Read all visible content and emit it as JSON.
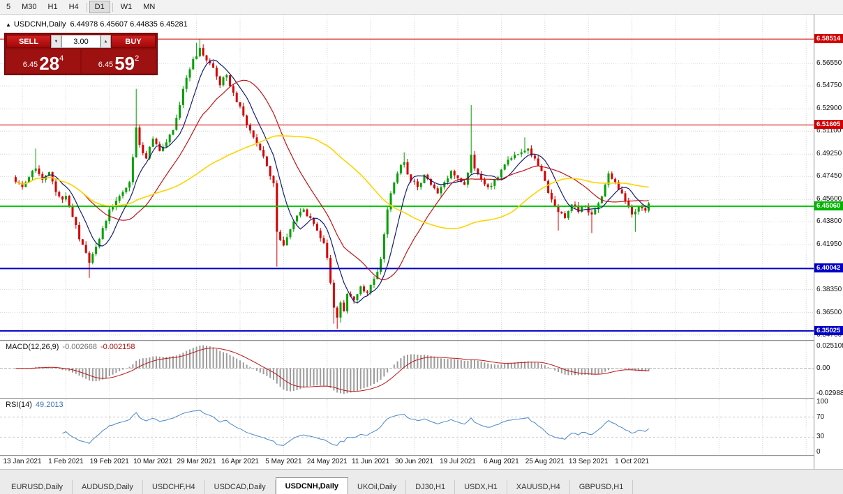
{
  "timeframe_bar": {
    "items": [
      "5",
      "M30",
      "H1",
      "H4",
      "D1",
      "W1",
      "MN"
    ],
    "active": "D1"
  },
  "header": {
    "symbol": "USDCNH,Daily",
    "ohlc": "6.44978 6.45607 6.44835 6.45281",
    "open": "6.44978",
    "high": "6.45607",
    "low": "6.44835",
    "close": "6.45281"
  },
  "icons": {
    "collapse_triangle": "▲",
    "lot_down_arrow": "▼",
    "lot_up_arrow": "▲"
  },
  "one_click": {
    "sell_label": "SELL",
    "buy_label": "BUY",
    "lot_size": "3.00",
    "sell_price_prefix": "6.45",
    "sell_price_big": "28",
    "sell_price_sup": "4",
    "buy_price_prefix": "6.45",
    "buy_price_big": "59",
    "buy_price_sup": "2"
  },
  "price_axis": {
    "grid_labels": [
      {
        "text": "6.56550",
        "price": 6.5655
      },
      {
        "text": "6.54750",
        "price": 6.5475
      },
      {
        "text": "6.52900",
        "price": 6.529
      },
      {
        "text": "6.51100",
        "price": 6.511
      },
      {
        "text": "6.49250",
        "price": 6.4925
      },
      {
        "text": "6.47450",
        "price": 6.4745
      },
      {
        "text": "6.45600",
        "price": 6.456
      },
      {
        "text": "6.43800",
        "price": 6.438
      },
      {
        "text": "6.41950",
        "price": 6.4195
      },
      {
        "text": "6.38350",
        "price": 6.3835
      },
      {
        "text": "6.36500",
        "price": 6.365
      },
      {
        "text": "6.34700",
        "price": 6.347
      }
    ],
    "tags": [
      {
        "text": "6.58514",
        "price": 6.58514,
        "color": "#d20000"
      },
      {
        "text": "6.51605",
        "price": 6.51605,
        "color": "#d20000"
      },
      {
        "text": "6.45060",
        "price": 6.4506,
        "color": "#00b400"
      },
      {
        "text": "6.40042",
        "price": 6.40042,
        "color": "#0000c8"
      },
      {
        "text": "6.35025",
        "price": 6.35025,
        "color": "#0000c8"
      }
    ]
  },
  "indicators": {
    "macd": {
      "name": "MACD(12,26,9)",
      "value_main": "-0.002668",
      "value_signal": "-0.002158",
      "axis_top": "0.025108",
      "axis_zero": "0.00",
      "axis_bottom": "-0.029885"
    },
    "rsi": {
      "name": "RSI(14)",
      "value": "49.2013",
      "axis": [
        "100",
        "70",
        "30",
        "0"
      ],
      "levels": [
        70,
        30
      ]
    }
  },
  "chart_data": {
    "type": "candlestick",
    "symbol": "USDCNH",
    "period": "Daily",
    "x_labels": [
      "13 Jan 2021",
      "1 Feb 2021",
      "19 Feb 2021",
      "10 Mar 2021",
      "29 Mar 2021",
      "16 Apr 2021",
      "5 May 2021",
      "24 May 2021",
      "11 Jun 2021",
      "30 Jun 2021",
      "19 Jul 2021",
      "6 Aug 2021",
      "25 Aug 2021",
      "13 Sep 2021",
      "1 Oct 2021"
    ],
    "candles_per_label_interval": 13,
    "total_candles": 190,
    "price_range_visible": [
      6.3429,
      6.6048
    ],
    "last_quote": {
      "open": 6.44978,
      "high": 6.45607,
      "low": 6.44835,
      "close": 6.45281
    },
    "horizontal_lines": [
      {
        "price": 6.58514,
        "color": "#d20000",
        "width": 1
      },
      {
        "price": 6.51605,
        "color": "#d20000",
        "width": 1
      },
      {
        "price": 6.4506,
        "color": "#00c800",
        "width": 2
      },
      {
        "price": 6.40042,
        "color": "#0000c8",
        "width": 2
      },
      {
        "price": 6.35025,
        "color": "#0000c8",
        "width": 2
      }
    ],
    "price_waypoints": [
      [
        0,
        6.47
      ],
      [
        2,
        6.466
      ],
      [
        4,
        6.474
      ],
      [
        6,
        6.481
      ],
      [
        8,
        6.472
      ],
      [
        10,
        6.478
      ],
      [
        12,
        6.462
      ],
      [
        14,
        6.456
      ],
      [
        15,
        6.459
      ],
      [
        17,
        6.442
      ],
      [
        19,
        6.424
      ],
      [
        22,
        6.405
      ],
      [
        24,
        6.418
      ],
      [
        26,
        6.433
      ],
      [
        28,
        6.448
      ],
      [
        30,
        6.455
      ],
      [
        32,
        6.462
      ],
      [
        34,
        6.47
      ],
      [
        36,
        6.514
      ],
      [
        37,
        6.5
      ],
      [
        39,
        6.489
      ],
      [
        41,
        6.505
      ],
      [
        43,
        6.495
      ],
      [
        45,
        6.502
      ],
      [
        47,
        6.512
      ],
      [
        49,
        6.532
      ],
      [
        51,
        6.554
      ],
      [
        53,
        6.569
      ],
      [
        55,
        6.578
      ],
      [
        57,
        6.568
      ],
      [
        59,
        6.562
      ],
      [
        61,
        6.548
      ],
      [
        63,
        6.556
      ],
      [
        65,
        6.542
      ],
      [
        67,
        6.531
      ],
      [
        69,
        6.516
      ],
      [
        71,
        6.506
      ],
      [
        73,
        6.496
      ],
      [
        75,
        6.483
      ],
      [
        77,
        6.469
      ],
      [
        78,
        6.43
      ],
      [
        80,
        6.419
      ],
      [
        82,
        6.432
      ],
      [
        84,
        6.443
      ],
      [
        86,
        6.448
      ],
      [
        88,
        6.441
      ],
      [
        90,
        6.431
      ],
      [
        92,
        6.421
      ],
      [
        93,
        6.409
      ],
      [
        94,
        6.389
      ],
      [
        95,
        6.369
      ],
      [
        96,
        6.361
      ],
      [
        97,
        6.373
      ],
      [
        98,
        6.366
      ],
      [
        99,
        6.38
      ],
      [
        101,
        6.375
      ],
      [
        103,
        6.386
      ],
      [
        105,
        6.381
      ],
      [
        107,
        6.392
      ],
      [
        109,
        6.408
      ],
      [
        110,
        6.428
      ],
      [
        111,
        6.448
      ],
      [
        112,
        6.461
      ],
      [
        114,
        6.477
      ],
      [
        116,
        6.486
      ],
      [
        118,
        6.471
      ],
      [
        120,
        6.466
      ],
      [
        122,
        6.476
      ],
      [
        124,
        6.468
      ],
      [
        126,
        6.461
      ],
      [
        128,
        6.47
      ],
      [
        130,
        6.479
      ],
      [
        132,
        6.473
      ],
      [
        134,
        6.468
      ],
      [
        136,
        6.492
      ],
      [
        137,
        6.481
      ],
      [
        139,
        6.472
      ],
      [
        141,
        6.466
      ],
      [
        143,
        6.472
      ],
      [
        145,
        6.48
      ],
      [
        147,
        6.488
      ],
      [
        149,
        6.492
      ],
      [
        151,
        6.494
      ],
      [
        153,
        6.497
      ],
      [
        155,
        6.489
      ],
      [
        157,
        6.479
      ],
      [
        158,
        6.471
      ],
      [
        160,
        6.456
      ],
      [
        162,
        6.446
      ],
      [
        164,
        6.441
      ],
      [
        166,
        6.452
      ],
      [
        168,
        6.446
      ],
      [
        170,
        6.451
      ],
      [
        172,
        6.444
      ],
      [
        174,
        6.453
      ],
      [
        176,
        6.468
      ],
      [
        177,
        6.477
      ],
      [
        179,
        6.47
      ],
      [
        181,
        6.461
      ],
      [
        183,
        6.451
      ],
      [
        184,
        6.444
      ],
      [
        186,
        6.451
      ],
      [
        188,
        6.447
      ],
      [
        189,
        6.45281
      ]
    ],
    "wick_overrides": [
      [
        6,
        "high",
        6.497
      ],
      [
        22,
        "low",
        6.393
      ],
      [
        36,
        "high",
        6.545
      ],
      [
        54,
        "high",
        6.582
      ],
      [
        55,
        "high",
        6.58514
      ],
      [
        56,
        "high",
        6.581
      ],
      [
        78,
        "low",
        6.402
      ],
      [
        95,
        "low",
        6.356
      ],
      [
        96,
        "low",
        6.352
      ],
      [
        97,
        "low",
        6.357
      ],
      [
        116,
        "high",
        6.494
      ],
      [
        136,
        "high",
        6.532
      ],
      [
        152,
        "high",
        6.506
      ],
      [
        162,
        "low",
        6.431
      ],
      [
        172,
        "low",
        6.429
      ],
      [
        185,
        "low",
        6.43
      ]
    ],
    "moving_averages": [
      {
        "period": 8,
        "color": "#141e78"
      },
      {
        "period": 21,
        "color": "#c01414"
      },
      {
        "period": 55,
        "color": "#ffd400"
      }
    ],
    "up_color": "#00a000",
    "down_color": "#d40000"
  },
  "bottom_tabs": {
    "items": [
      "EURUSD,Daily",
      "AUDUSD,Daily",
      "USDCHF,H4",
      "USDCAD,Daily",
      "USDCNH,Daily",
      "UKOil,Daily",
      "DJ30,H1",
      "USDX,H1",
      "XAUUSD,H4",
      "GBPUSD,H1"
    ],
    "active": "USDCNH,Daily"
  }
}
